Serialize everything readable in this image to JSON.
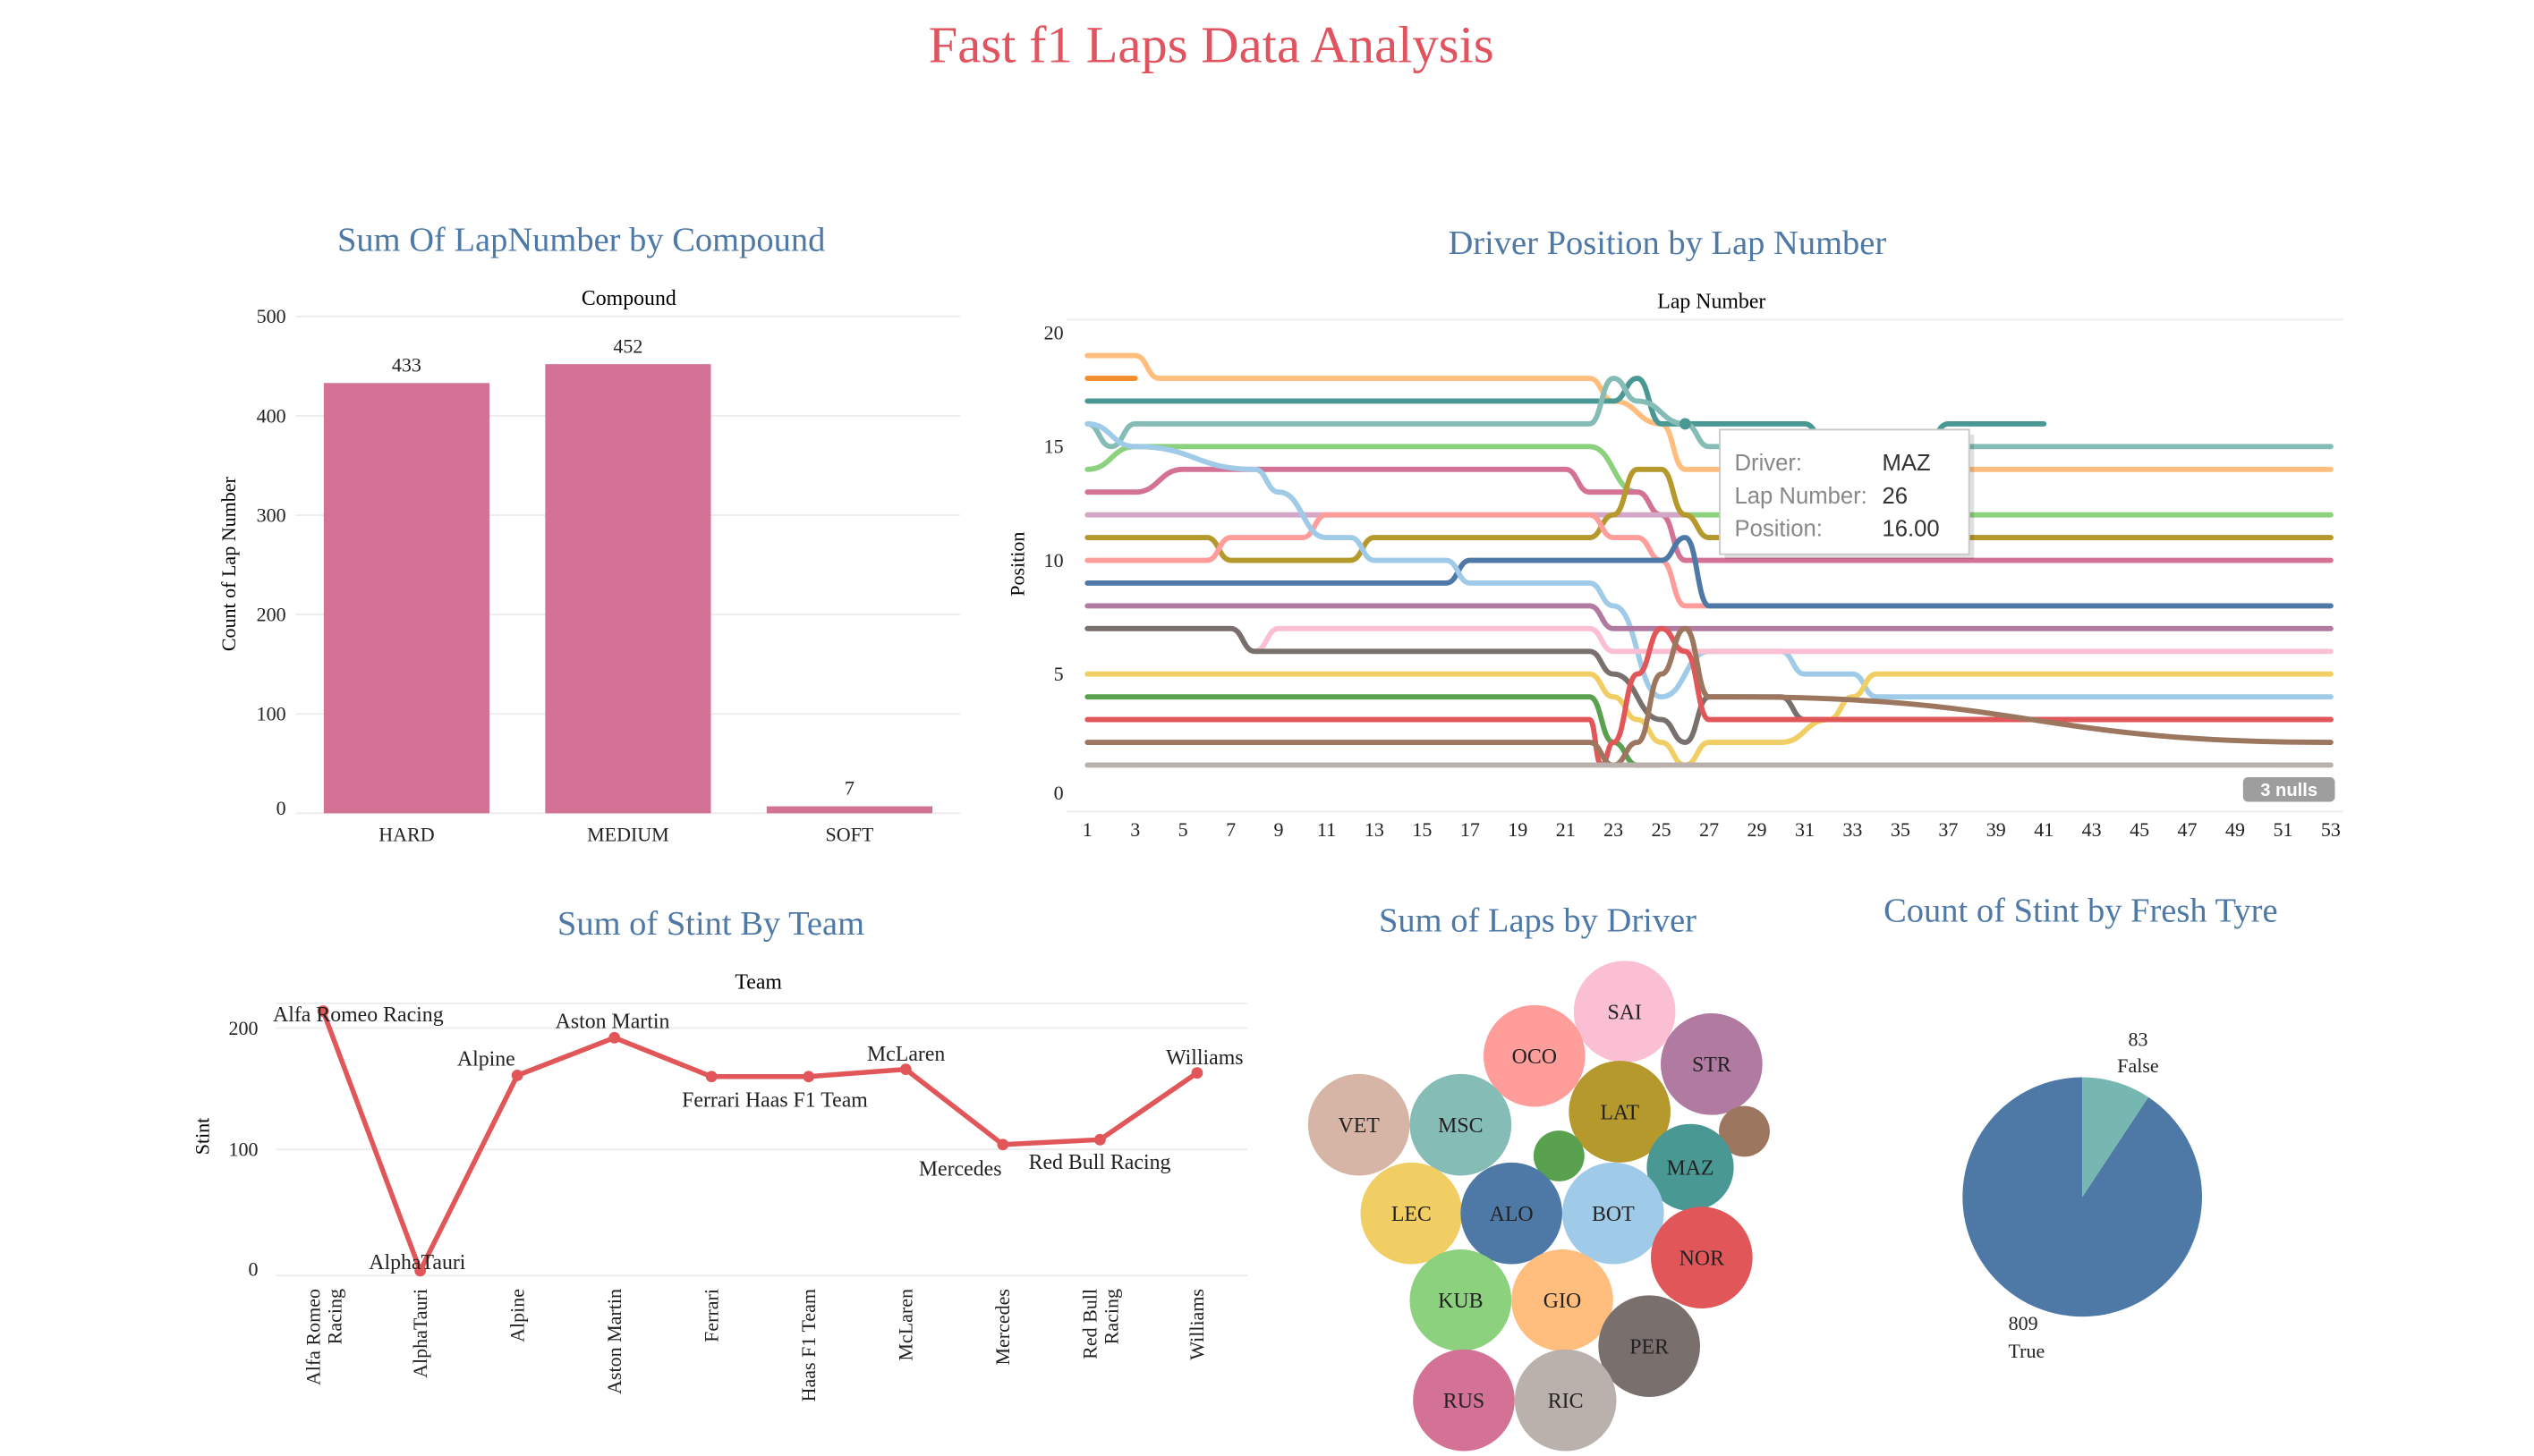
{
  "dashboard": {
    "title": "Fast f1 Laps Data Analysis"
  },
  "colors": {
    "title": "#e0535f",
    "subtitle": "#4e79a7",
    "bar": "#d37295",
    "team_line": "#e15759",
    "pie_true": "#4e79a7",
    "pie_false": "#76b7b2",
    "gridline": "#ececec",
    "nulls_badge": "#9e9e9e"
  },
  "chart_data": [
    {
      "id": "compound",
      "type": "bar",
      "title": "Sum Of LapNumber by Compound",
      "column_header": "Compound",
      "ylabel": "Count of Lap Number",
      "ylim": [
        0,
        500
      ],
      "yticks": [
        0,
        100,
        200,
        300,
        400,
        500
      ],
      "categories": [
        "HARD",
        "MEDIUM",
        "SOFT"
      ],
      "values": [
        433,
        452,
        7
      ],
      "data_labels": [
        "433",
        "452",
        "7"
      ]
    },
    {
      "id": "positions",
      "type": "line",
      "title": "Driver Position by Lap Number",
      "column_header": "Lap Number",
      "ylabel": "Position",
      "xlim": [
        1,
        53
      ],
      "ylim": [
        0,
        20
      ],
      "xticks": [
        1,
        3,
        5,
        7,
        9,
        11,
        13,
        15,
        17,
        19,
        21,
        23,
        25,
        27,
        29,
        31,
        33,
        35,
        37,
        39,
        41,
        43,
        45,
        47,
        49,
        51,
        53
      ],
      "yticks": [
        0,
        5,
        10,
        15,
        20
      ],
      "nulls_label": "3 nulls",
      "tooltip": {
        "driver_label": "Driver:",
        "driver": "MAZ",
        "lap_label": "Lap Number:",
        "lap": "26",
        "pos_label": "Position:",
        "pos": "16.00"
      },
      "series": [
        {
          "color": "#ffbe7d",
          "points": [
            [
              1,
              19
            ],
            [
              3,
              19
            ],
            [
              4,
              18
            ],
            [
              22,
              18
            ],
            [
              23,
              17
            ],
            [
              25,
              16
            ],
            [
              26,
              14
            ],
            [
              53,
              14
            ]
          ]
        },
        {
          "color": "#f28e2b",
          "points": [
            [
              1,
              18
            ],
            [
              3,
              18
            ]
          ]
        },
        {
          "color": "#499894",
          "points": [
            [
              1,
              17
            ],
            [
              22,
              17
            ],
            [
              23,
              17
            ],
            [
              24,
              18
            ],
            [
              25,
              16
            ],
            [
              31,
              16
            ],
            [
              32,
              15
            ],
            [
              36,
              15
            ],
            [
              37,
              16
            ],
            [
              41,
              16
            ]
          ]
        },
        {
          "color": "#86bcb6",
          "points": [
            [
              1,
              16
            ],
            [
              2,
              15
            ],
            [
              3,
              16
            ],
            [
              22,
              16
            ],
            [
              23,
              18
            ],
            [
              24,
              17
            ],
            [
              26,
              16
            ],
            [
              27,
              15
            ],
            [
              53,
              15
            ]
          ]
        },
        {
          "color": "#8cd17d",
          "points": [
            [
              1,
              14
            ],
            [
              3,
              15
            ],
            [
              22,
              15
            ],
            [
              24,
              13
            ],
            [
              25,
              12
            ],
            [
              53,
              12
            ]
          ]
        },
        {
          "color": "#d37295",
          "points": [
            [
              1,
              13
            ],
            [
              3,
              13
            ],
            [
              5,
              14
            ],
            [
              21,
              14
            ],
            [
              22,
              13
            ],
            [
              24,
              13
            ],
            [
              25,
              12
            ],
            [
              26,
              10
            ],
            [
              53,
              10
            ]
          ]
        },
        {
          "color": "#d4a6c8",
          "points": [
            [
              1,
              12
            ],
            [
              22,
              12
            ],
            [
              23,
              12
            ],
            [
              26,
              12
            ],
            [
              27,
              11
            ],
            [
              53,
              11
            ]
          ]
        },
        {
          "color": "#b6992d",
          "points": [
            [
              1,
              11
            ],
            [
              6,
              11
            ],
            [
              7,
              10
            ],
            [
              12,
              10
            ],
            [
              13,
              11
            ],
            [
              22,
              11
            ],
            [
              23,
              12
            ],
            [
              24,
              14
            ],
            [
              25,
              14
            ],
            [
              26,
              12
            ],
            [
              27,
              11
            ],
            [
              53,
              11
            ]
          ]
        },
        {
          "color": "#ff9d9a",
          "points": [
            [
              1,
              10
            ],
            [
              6,
              10
            ],
            [
              7,
              11
            ],
            [
              10,
              11
            ],
            [
              11,
              12
            ],
            [
              22,
              12
            ],
            [
              23,
              11
            ],
            [
              24,
              11
            ],
            [
              25,
              10
            ],
            [
              26,
              8
            ],
            [
              53,
              8
            ]
          ]
        },
        {
          "color": "#4e79a7",
          "points": [
            [
              1,
              9
            ],
            [
              16,
              9
            ],
            [
              17,
              10
            ],
            [
              24,
              10
            ],
            [
              25,
              10
            ],
            [
              26,
              11
            ],
            [
              27,
              8
            ],
            [
              53,
              8
            ]
          ]
        },
        {
          "color": "#a0cbe8",
          "points": [
            [
              1,
              16
            ],
            [
              3,
              15
            ],
            [
              8,
              14
            ],
            [
              9,
              13
            ],
            [
              11,
              11
            ],
            [
              12,
              11
            ],
            [
              13,
              10
            ],
            [
              16,
              10
            ],
            [
              17,
              9
            ],
            [
              22,
              9
            ],
            [
              23,
              8
            ],
            [
              25,
              4
            ],
            [
              27,
              6
            ],
            [
              30,
              6
            ],
            [
              31,
              5
            ],
            [
              33,
              5
            ],
            [
              34,
              4
            ],
            [
              53,
              4
            ]
          ]
        },
        {
          "color": "#b07aa1",
          "points": [
            [
              1,
              8
            ],
            [
              22,
              8
            ],
            [
              23,
              7
            ],
            [
              26,
              7
            ],
            [
              27,
              7
            ],
            [
              53,
              7
            ]
          ]
        },
        {
          "color": "#fabfd2",
          "points": [
            [
              1,
              7
            ],
            [
              7,
              7
            ],
            [
              8,
              6
            ],
            [
              9,
              7
            ],
            [
              22,
              7
            ],
            [
              23,
              6
            ],
            [
              26,
              6
            ],
            [
              53,
              6
            ]
          ]
        },
        {
          "color": "#79706e",
          "points": [
            [
              1,
              7
            ],
            [
              7,
              7
            ],
            [
              8,
              6
            ],
            [
              22,
              6
            ],
            [
              23,
              5
            ],
            [
              25,
              3
            ],
            [
              26,
              2
            ],
            [
              27,
              4
            ],
            [
              30,
              4
            ],
            [
              31,
              3
            ],
            [
              53,
              3
            ]
          ]
        },
        {
          "color": "#f1ce63",
          "points": [
            [
              1,
              5
            ],
            [
              22,
              5
            ],
            [
              23,
              4
            ],
            [
              24,
              3
            ],
            [
              25,
              2
            ],
            [
              26,
              1
            ],
            [
              27,
              2
            ],
            [
              30,
              2
            ],
            [
              32,
              3
            ],
            [
              33,
              4
            ],
            [
              34,
              5
            ],
            [
              53,
              5
            ]
          ]
        },
        {
          "color": "#59a14f",
          "points": [
            [
              1,
              4
            ],
            [
              22,
              4
            ],
            [
              23,
              2
            ],
            [
              24,
              1
            ],
            [
              25,
              1
            ]
          ]
        },
        {
          "color": "#e15759",
          "points": [
            [
              1,
              3
            ],
            [
              22,
              3
            ],
            [
              22.5,
              1
            ],
            [
              23,
              2
            ],
            [
              24,
              5
            ],
            [
              25,
              7
            ],
            [
              26,
              6
            ],
            [
              27,
              3
            ],
            [
              53,
              3
            ]
          ]
        },
        {
          "color": "#9d7660",
          "points": [
            [
              1,
              2
            ],
            [
              22,
              2
            ],
            [
              23,
              1
            ],
            [
              24,
              2
            ],
            [
              25,
              5
            ],
            [
              26,
              7
            ],
            [
              27,
              4
            ],
            [
              28,
              4
            ],
            [
              53,
              2
            ]
          ]
        },
        {
          "color": "#bab0ac",
          "points": [
            [
              1,
              1
            ],
            [
              53,
              1
            ]
          ]
        }
      ]
    },
    {
      "id": "team",
      "type": "line",
      "title": "Sum of Stint By Team",
      "column_header": "Team",
      "ylabel": "Stint",
      "ylim": [
        0,
        200
      ],
      "yticks": [
        0,
        100,
        200
      ],
      "categories": [
        "Alfa Romeo Racing",
        "AlphaTauri",
        "Alpine",
        "Aston Martin",
        "Ferrari",
        "Haas F1 Team",
        "McLaren",
        "Mercedes",
        "Red Bull Racing",
        "Williams"
      ],
      "category_label_lines": [
        [
          "Alfa Romeo",
          "Racing"
        ],
        [
          "AlphaTauri"
        ],
        [
          "Alpine"
        ],
        [
          "Aston Martin"
        ],
        [
          "Ferrari"
        ],
        [
          "Haas F1 Team"
        ],
        [
          "McLaren"
        ],
        [
          "Mercedes"
        ],
        [
          "Red Bull",
          "Racing"
        ],
        [
          "Williams"
        ]
      ],
      "values": [
        214,
        0,
        161,
        192,
        160,
        160,
        166,
        104,
        108,
        163
      ],
      "point_labels": [
        "Alfa Romeo Racing",
        "AlphaTauri",
        "Alpine",
        "Aston Martin",
        "Ferrari Haas F1 Team",
        "",
        "McLaren",
        "Mercedes",
        "Red Bull Racing",
        "Williams"
      ]
    },
    {
      "id": "drivers",
      "type": "bubble",
      "title": "Sum of Laps by Driver",
      "bubbles": [
        {
          "label": "SAI",
          "value": 56,
          "color": "#fabfd2"
        },
        {
          "label": "OCO",
          "value": 56,
          "color": "#ff9d9a"
        },
        {
          "label": "STR",
          "value": 56,
          "color": "#b07aa1"
        },
        {
          "label": "VET",
          "value": 56,
          "color": "#d7b5a6"
        },
        {
          "label": "MSC",
          "value": 56,
          "color": "#86bcb6"
        },
        {
          "label": "LAT",
          "value": 56,
          "color": "#b6992d"
        },
        {
          "label": "",
          "value": 14,
          "color": "#9d7660"
        },
        {
          "label": "",
          "value": 14,
          "color": "#59a14f"
        },
        {
          "label": "MAZ",
          "value": 41,
          "color": "#499894"
        },
        {
          "label": "LEC",
          "value": 56,
          "color": "#f1ce63"
        },
        {
          "label": "ALO",
          "value": 56,
          "color": "#4e79a7"
        },
        {
          "label": "BOT",
          "value": 56,
          "color": "#a0cbe8"
        },
        {
          "label": "NOR",
          "value": 56,
          "color": "#e15759"
        },
        {
          "label": "KUB",
          "value": 56,
          "color": "#8cd17d"
        },
        {
          "label": "GIO",
          "value": 56,
          "color": "#ffbe7d"
        },
        {
          "label": "PER",
          "value": 56,
          "color": "#79706e"
        },
        {
          "label": "RUS",
          "value": 56,
          "color": "#d37295"
        },
        {
          "label": "RIC",
          "value": 56,
          "color": "#bab0ac"
        }
      ]
    },
    {
      "id": "fresh_tyre",
      "type": "pie",
      "title": "Count of Stint by Fresh Tyre",
      "slices": [
        {
          "label": "True",
          "value": 809
        },
        {
          "label": "False",
          "value": 83
        }
      ]
    }
  ]
}
